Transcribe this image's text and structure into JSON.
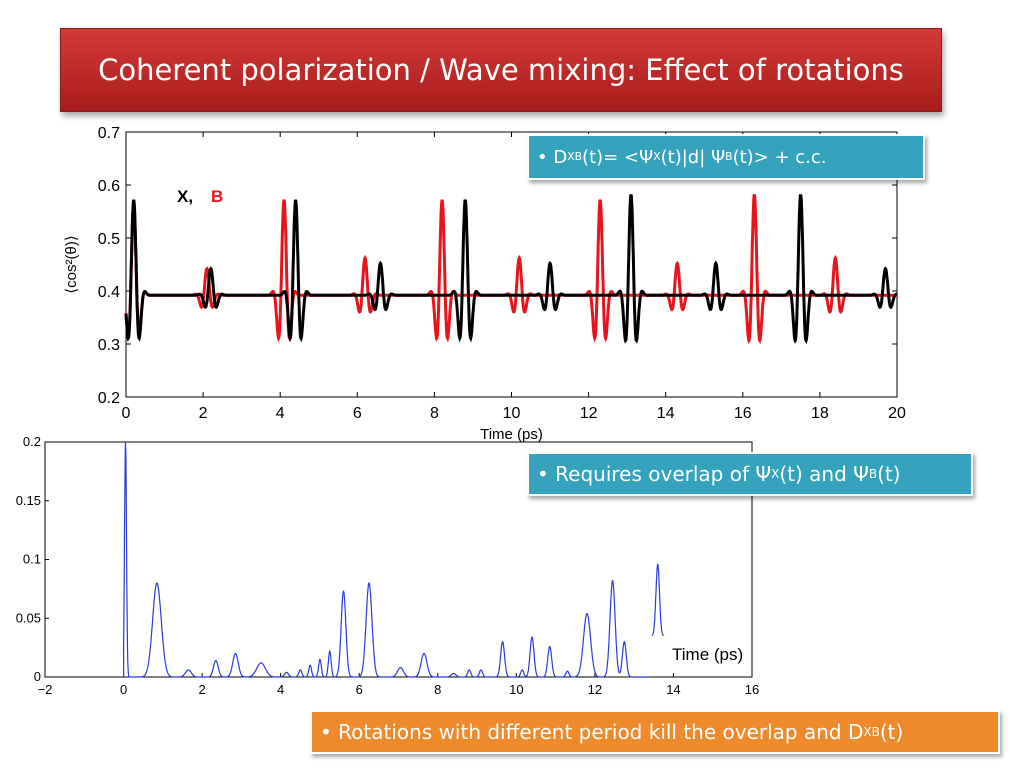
{
  "slide": {
    "title": "Coherent polarization / Wave mixing: Effect of rotations"
  },
  "callouts": {
    "c1": {
      "bullet": "•",
      "d": "D",
      "d_sub": "XB",
      "eq": "(t)= <Ψ",
      "psi_x_sub": "X",
      "mid": "(t)|d| Ψ",
      "psi_b_sub": "B",
      "end": "(t)> + c.c."
    },
    "c2": {
      "bullet": "•",
      "text_a": "Requires overlap of Ψ",
      "sub_x": "X",
      "text_b": "(t) and Ψ",
      "sub_b": "B",
      "text_c": "(t)"
    },
    "c3": {
      "bullet": "•",
      "text_a": "Rotations with different period kill the overlap and D",
      "sub": "XB",
      "text_b": "(t)"
    }
  },
  "colors": {
    "x_series": "#000000",
    "b_series": "#e8141c",
    "spectrum": "#2b3bd8",
    "callout_teal": "#35a3bd",
    "callout_orange": "#ef8a2c",
    "title_red": "#c0302c"
  },
  "chart_data": [
    {
      "type": "line",
      "xlabel": "Time (ps)",
      "ylabel": "⟨cos²(θ)⟩",
      "xlim": [
        0,
        20
      ],
      "ylim": [
        0.2,
        0.7
      ],
      "xticks": [
        "0",
        "2",
        "4",
        "6",
        "8",
        "10",
        "12",
        "14",
        "16",
        "18",
        "20"
      ],
      "yticks": [
        "0.2",
        "0.3",
        "0.4",
        "0.5",
        "0.6",
        "0.7"
      ],
      "legend": {
        "x_label": "X,",
        "b_label": "B"
      },
      "baseline": 0.392,
      "series": [
        {
          "name": "X",
          "bursts": [
            {
              "t": 0.2,
              "amp": 0.18
            },
            {
              "t": 2.2,
              "amp": 0.05
            },
            {
              "t": 4.4,
              "amp": 0.18
            },
            {
              "t": 6.6,
              "amp": 0.06
            },
            {
              "t": 8.8,
              "amp": 0.18
            },
            {
              "t": 11.0,
              "amp": 0.06
            },
            {
              "t": 13.1,
              "amp": 0.19
            },
            {
              "t": 15.3,
              "amp": 0.06
            },
            {
              "t": 17.5,
              "amp": 0.19
            },
            {
              "t": 19.7,
              "amp": 0.05
            }
          ]
        },
        {
          "name": "B",
          "bursts": [
            {
              "t": 0.2,
              "amp": 0.17
            },
            {
              "t": 2.1,
              "amp": 0.05
            },
            {
              "t": 4.1,
              "amp": 0.18
            },
            {
              "t": 6.2,
              "amp": 0.07
            },
            {
              "t": 8.2,
              "amp": 0.18
            },
            {
              "t": 10.2,
              "amp": 0.07
            },
            {
              "t": 12.3,
              "amp": 0.18
            },
            {
              "t": 14.3,
              "amp": 0.06
            },
            {
              "t": 16.3,
              "amp": 0.19
            },
            {
              "t": 18.4,
              "amp": 0.07
            }
          ]
        }
      ]
    },
    {
      "type": "line",
      "xlabel": "Time (ps)",
      "xlim": [
        -2,
        16
      ],
      "ylim": [
        0,
        0.2
      ],
      "xticks": [
        "−2",
        "0",
        "2",
        "4",
        "6",
        "8",
        "10",
        "12",
        "14",
        "16"
      ],
      "yticks": [
        "0",
        "0.05",
        "0.1",
        "0.15",
        "0.2"
      ],
      "peaks": [
        {
          "x": 0.05,
          "y": 0.2,
          "w": 0.05
        },
        {
          "x": 0.85,
          "y": 0.08,
          "w": 0.22
        },
        {
          "x": 1.65,
          "y": 0.006,
          "w": 0.15
        },
        {
          "x": 2.35,
          "y": 0.014,
          "w": 0.12
        },
        {
          "x": 2.85,
          "y": 0.02,
          "w": 0.14
        },
        {
          "x": 3.5,
          "y": 0.012,
          "w": 0.22
        },
        {
          "x": 4.15,
          "y": 0.004,
          "w": 0.1
        },
        {
          "x": 4.5,
          "y": 0.006,
          "w": 0.08
        },
        {
          "x": 4.75,
          "y": 0.01,
          "w": 0.07
        },
        {
          "x": 5.0,
          "y": 0.015,
          "w": 0.07
        },
        {
          "x": 5.25,
          "y": 0.022,
          "w": 0.07
        },
        {
          "x": 5.6,
          "y": 0.073,
          "w": 0.12
        },
        {
          "x": 6.25,
          "y": 0.08,
          "w": 0.15
        },
        {
          "x": 7.05,
          "y": 0.008,
          "w": 0.15
        },
        {
          "x": 7.65,
          "y": 0.02,
          "w": 0.15
        },
        {
          "x": 8.4,
          "y": 0.003,
          "w": 0.12
        },
        {
          "x": 8.8,
          "y": 0.006,
          "w": 0.08
        },
        {
          "x": 9.1,
          "y": 0.006,
          "w": 0.08
        },
        {
          "x": 9.65,
          "y": 0.03,
          "w": 0.1
        },
        {
          "x": 10.15,
          "y": 0.006,
          "w": 0.08
        },
        {
          "x": 10.4,
          "y": 0.034,
          "w": 0.1
        },
        {
          "x": 10.85,
          "y": 0.026,
          "w": 0.1
        },
        {
          "x": 11.3,
          "y": 0.005,
          "w": 0.08
        },
        {
          "x": 11.8,
          "y": 0.054,
          "w": 0.18
        },
        {
          "x": 12.45,
          "y": 0.082,
          "w": 0.13
        },
        {
          "x": 12.75,
          "y": 0.03,
          "w": 0.1
        },
        {
          "x": 13.6,
          "y": 0.096,
          "w": 0.09
        }
      ]
    }
  ]
}
